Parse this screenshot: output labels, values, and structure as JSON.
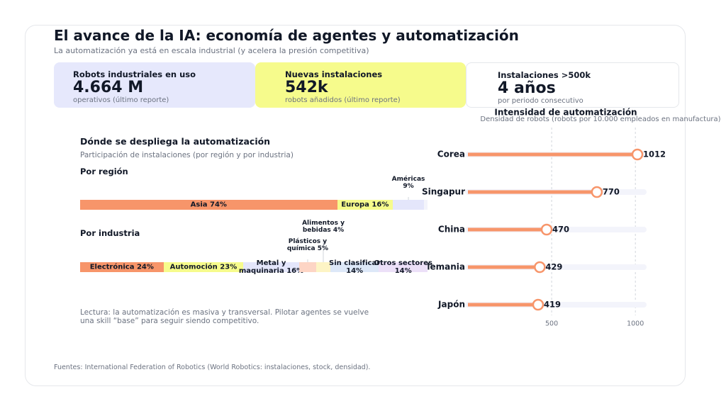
{
  "header": {
    "title": "El avance de la IA: economía de agentes y automatización",
    "subtitle": "La automatización ya está en escala industrial (y acelera la presión competitiva)"
  },
  "kpis": [
    {
      "label": "Robots industriales en uso",
      "value": "4.664 M",
      "note": "operativos (último reporte)"
    },
    {
      "label": "Nuevas instalaciones",
      "value": "542k",
      "note": "robots añadidos (último reporte)"
    },
    {
      "label": "Instalaciones >500k",
      "value": "4 años",
      "note": "por periodo consecutivo"
    }
  ],
  "section": {
    "title": "Dónde se despliega la automatización",
    "subtitle": "Participación de instalaciones (por región y por industria)"
  },
  "chart_data": [
    {
      "type": "stacked-bar",
      "title": "Por región",
      "values": [
        74,
        16,
        9
      ],
      "value_labels": [
        "Asia 74%",
        "Europa 16%",
        "Américas 9%"
      ],
      "colors": [
        "#f7956a",
        "#f6fb8c",
        "#e4e6fb"
      ],
      "xlim": [
        0,
        100
      ]
    },
    {
      "type": "stacked-bar",
      "title": "Por industria",
      "values": [
        24,
        23,
        16,
        5,
        4,
        14,
        14
      ],
      "value_labels": [
        "Electrónica 24%",
        "Automoción 23%",
        "Metal y maquinaria 16%",
        "Plásticos y química 5%",
        "Alimentos y bebidas 4%",
        "Sin clasificar 14%",
        "Otros sectores 14%"
      ],
      "colors": [
        "#f7956a",
        "#f6fb8c",
        "#e4e6fb",
        "#fdd5c5",
        "#fdf4c5",
        "#dde8f8",
        "#ece0f8"
      ],
      "xlim": [
        0,
        100
      ]
    },
    {
      "type": "lollipop",
      "title": "Intensidad de automatización",
      "subtitle": "Densidad de robots (robots por 10.000 empleados en manufactura)",
      "categories": [
        "Corea",
        "Singapur",
        "China",
        "Alemania",
        "Japón"
      ],
      "values": [
        1012,
        770,
        470,
        429,
        419
      ],
      "color": "#f7956a",
      "xlim": [
        0,
        1050
      ],
      "xticks": [
        500,
        1000
      ],
      "grid": true
    }
  ],
  "note": "Lectura: la automatización es masiva y transversal. Pilotar agentes se vuelve una skill “base” para seguir siendo competitivo.",
  "source": "Fuentes: International Federation of Robotics (World Robotics: instalaciones, stock, densidad)."
}
